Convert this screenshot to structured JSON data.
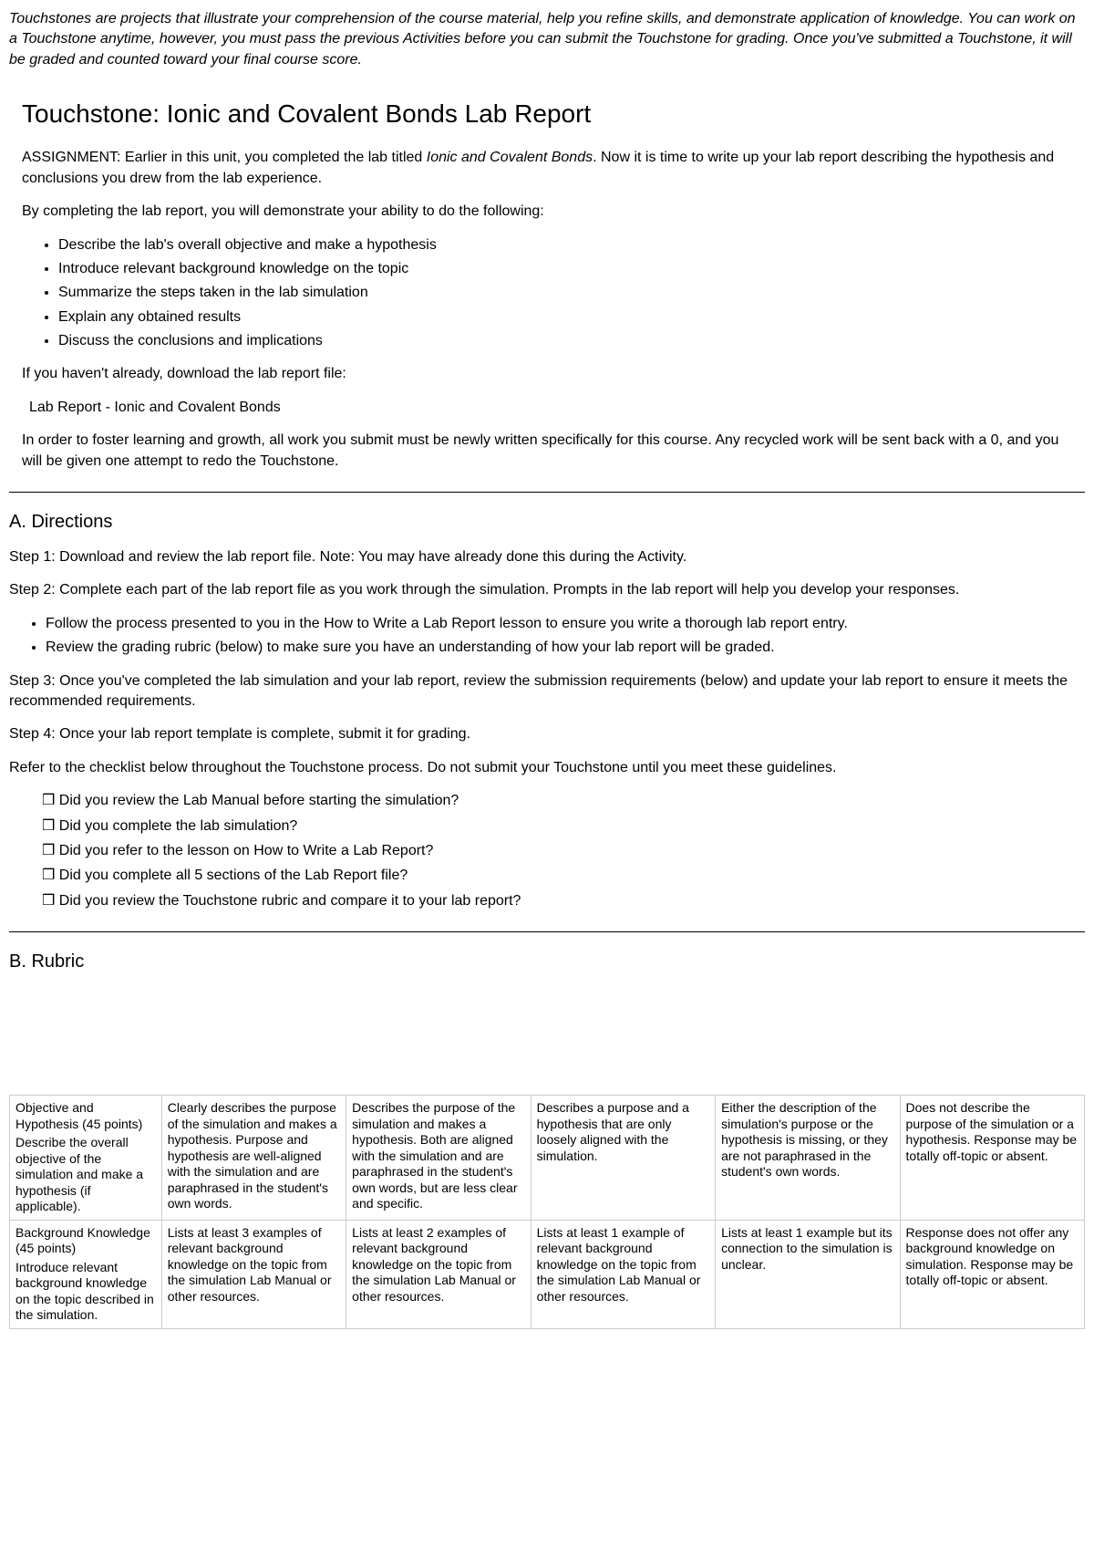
{
  "intro": "Touchstones are projects that illustrate your comprehension of the course material, help you refine skills, and demonstrate application of knowledge. You can work on a Touchstone anytime, however, you must pass the previous Activities before you can submit the Touchstone for grading. Once you've submitted a Touchstone, it will be graded and counted toward your final course score.",
  "title": "Touchstone: Ionic and Covalent Bonds Lab Report",
  "assignment_prefix": "ASSIGNMENT: Earlier in this unit, you completed the lab titled ",
  "assignment_em": "Ionic and Covalent Bonds",
  "assignment_suffix": ". Now it is time to write up your lab report describing the hypothesis and conclusions you drew from the lab experience.",
  "demo_intro": "By completing the lab report, you will demonstrate your ability to do the following:",
  "objectives": [
    "Describe the lab's overall objective and make a hypothesis",
    "Introduce relevant background knowledge on the topic",
    "Summarize the steps taken in the lab simulation",
    "Explain any obtained results",
    "Discuss the conclusions and implications"
  ],
  "download_intro": "If you haven't already, download the lab report file:",
  "download_link": "Lab Report - Ionic and Covalent Bonds",
  "originality": "In order to foster learning and growth, all work you submit must be newly written specifically for this course. Any recycled work will be sent back with a 0, and you will be given one attempt to redo the Touchstone.",
  "dir_heading": "A. Directions",
  "step1": "Step 1: Download and review the lab report file. Note: You may have already done this during the Activity.",
  "step2": "Step 2: Complete each part of the lab report file as you work through the simulation. Prompts in the lab report will help you develop your responses.",
  "step2_bullets": [
    "Follow the process presented to you in the How to Write a Lab Report lesson to ensure you write a thorough lab report entry.",
    "Review the grading rubric (below) to make sure you have an understanding of how your lab report will be graded."
  ],
  "step3": "Step 3: Once you've completed the lab simulation and your lab report, review the submission requirements (below) and update your lab report to ensure it meets the recommended requirements.",
  "step4": "Step 4: Once your lab report template is complete, submit it for grading.",
  "checklist_intro": "Refer to the checklist below throughout the Touchstone process. Do not submit your Touchstone until you meet these guidelines.",
  "checklist": [
    "Did you review the Lab Manual before starting the simulation?",
    "Did you complete the lab simulation?",
    "Did you refer to the lesson on How to Write a Lab Report?",
    "Did you complete all 5 sections of the Lab Report file?",
    "Did you review the Touchstone rubric and compare it to your lab report?"
  ],
  "rubric_heading": "B. Rubric",
  "rubric": [
    {
      "title": "Objective and Hypothesis (45 points)",
      "desc": "Describe the overall objective of the simulation and make a hypothesis (if applicable).",
      "c1": "Clearly describes the purpose of the simulation and makes a hypothesis. Purpose and hypothesis are well-aligned with the simulation and are paraphrased in the student's own words.",
      "c2": "Describes the purpose of the simulation and makes a hypothesis. Both are aligned with the simulation and are paraphrased in the student's own words, but are less clear and specific.",
      "c3": "Describes a purpose and a hypothesis that are only loosely aligned with the simulation.",
      "c4": "Either the description of the simulation's purpose or the hypothesis is missing, or they are not paraphrased in the student's own words.",
      "c5": "Does not describe the purpose of the simulation or a hypothesis. Response may be totally off-topic or absent."
    },
    {
      "title": "Background Knowledge (45 points)",
      "desc": "Introduce relevant background knowledge on the topic described in the simulation.",
      "c1": "Lists at least 3 examples of relevant background knowledge on the topic from the simulation Lab Manual or other resources.",
      "c2": "Lists at least 2 examples of relevant background knowledge on the topic from the simulation Lab Manual or other resources.",
      "c3": "Lists at least 1 example of relevant background knowledge on the topic from the simulation Lab Manual or other resources.",
      "c4": "Lists at least 1 example but its connection to the simulation is unclear.",
      "c5": "Response does not offer any background knowledge on simulation. Response may be totally off-topic or absent."
    }
  ]
}
